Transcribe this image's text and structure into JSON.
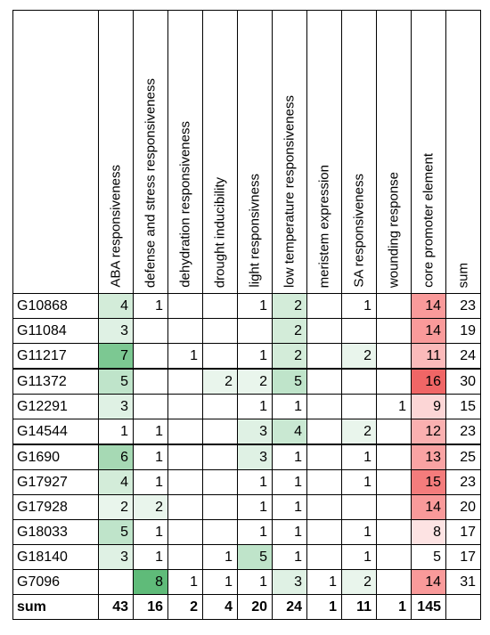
{
  "table": {
    "columns": [
      "ABA responsiveness",
      "defense and stress responsiveness",
      "dehydration responsiveness",
      "drought inducibility",
      "light responsivness",
      "low temperature responsiveness",
      "meristem expression",
      "SA responsiveness",
      "wounding response",
      "core promoter element",
      "sum"
    ],
    "rows": [
      {
        "name": "G10868",
        "cells": [
          "4",
          "1",
          "",
          "",
          "1",
          "2",
          "",
          "1",
          "",
          "14",
          "23"
        ],
        "colors": [
          "#d3ecd9",
          "#ffffff",
          "#ffffff",
          "#ffffff",
          "#ffffff",
          "#d3ecd9",
          "#ffffff",
          "#ffffff",
          "#ffffff",
          "#f99a9a",
          "#ffffff"
        ]
      },
      {
        "name": "G11084",
        "cells": [
          "3",
          "",
          "",
          "",
          "",
          "2",
          "",
          "",
          "",
          "14",
          "19"
        ],
        "colors": [
          "#dff1e4",
          "#ffffff",
          "#ffffff",
          "#ffffff",
          "#ffffff",
          "#d3ecd9",
          "#ffffff",
          "#ffffff",
          "#ffffff",
          "#f99a9a",
          "#ffffff"
        ]
      },
      {
        "name": "G11217",
        "cells": [
          "7",
          "",
          "1",
          "",
          "1",
          "2",
          "",
          "2",
          "",
          "11",
          "24"
        ],
        "colors": [
          "#7cc892",
          "#ffffff",
          "#ffffff",
          "#ffffff",
          "#ffffff",
          "#d3ecd9",
          "#ffffff",
          "#e9f5ec",
          "#ffffff",
          "#fbbaba",
          "#ffffff"
        ]
      },
      {
        "name": "G11372",
        "cells": [
          "5",
          "",
          "",
          "2",
          "2",
          "5",
          "",
          "",
          "",
          "16",
          "30"
        ],
        "colors": [
          "#bfe4ca",
          "#ffffff",
          "#ffffff",
          "#e9f5ec",
          "#e9f5ec",
          "#bfe4ca",
          "#ffffff",
          "#ffffff",
          "#ffffff",
          "#f06666",
          "#ffffff"
        ]
      },
      {
        "name": "G12291",
        "cells": [
          "3",
          "",
          "",
          "",
          "1",
          "1",
          "",
          "",
          "1",
          "9",
          "15"
        ],
        "colors": [
          "#dff1e4",
          "#ffffff",
          "#ffffff",
          "#ffffff",
          "#ffffff",
          "#ffffff",
          "#ffffff",
          "#ffffff",
          "#ffffff",
          "#fcd6d6",
          "#ffffff"
        ]
      },
      {
        "name": "G14544",
        "cells": [
          "1",
          "1",
          "",
          "",
          "3",
          "4",
          "",
          "2",
          "",
          "12",
          "23"
        ],
        "colors": [
          "#ffffff",
          "#ffffff",
          "#ffffff",
          "#ffffff",
          "#dff1e4",
          "#c9e8d2",
          "#ffffff",
          "#e9f5ec",
          "#ffffff",
          "#fab0b0",
          "#ffffff"
        ]
      },
      {
        "name": "G1690",
        "cells": [
          "6",
          "1",
          "",
          "",
          "3",
          "1",
          "",
          "1",
          "",
          "13",
          "25"
        ],
        "colors": [
          "#a6d9b4",
          "#ffffff",
          "#ffffff",
          "#ffffff",
          "#dff1e4",
          "#ffffff",
          "#ffffff",
          "#ffffff",
          "#ffffff",
          "#f9a3a3",
          "#ffffff"
        ]
      },
      {
        "name": "G17927",
        "cells": [
          "4",
          "1",
          "",
          "",
          "1",
          "1",
          "",
          "1",
          "",
          "15",
          "23"
        ],
        "colors": [
          "#d3ecd9",
          "#ffffff",
          "#ffffff",
          "#ffffff",
          "#ffffff",
          "#ffffff",
          "#ffffff",
          "#ffffff",
          "#ffffff",
          "#f47c7c",
          "#ffffff"
        ]
      },
      {
        "name": "G17928",
        "cells": [
          "2",
          "2",
          "",
          "",
          "1",
          "1",
          "",
          "",
          "",
          "14",
          "20"
        ],
        "colors": [
          "#e9f5ec",
          "#e9f5ec",
          "#ffffff",
          "#ffffff",
          "#ffffff",
          "#ffffff",
          "#ffffff",
          "#ffffff",
          "#ffffff",
          "#f99a9a",
          "#ffffff"
        ]
      },
      {
        "name": "G18033",
        "cells": [
          "5",
          "1",
          "",
          "",
          "1",
          "1",
          "",
          "1",
          "",
          "8",
          "17"
        ],
        "colors": [
          "#bfe4ca",
          "#ffffff",
          "#ffffff",
          "#ffffff",
          "#ffffff",
          "#ffffff",
          "#ffffff",
          "#ffffff",
          "#ffffff",
          "#fde3e3",
          "#ffffff"
        ]
      },
      {
        "name": "G18140",
        "cells": [
          "3",
          "1",
          "",
          "1",
          "5",
          "1",
          "",
          "1",
          "",
          "5",
          "17"
        ],
        "colors": [
          "#dff1e4",
          "#ffffff",
          "#ffffff",
          "#ffffff",
          "#bfe4ca",
          "#ffffff",
          "#ffffff",
          "#ffffff",
          "#ffffff",
          "#ffffff",
          "#ffffff"
        ]
      },
      {
        "name": "G7096",
        "cells": [
          "",
          "8",
          "1",
          "1",
          "1",
          "3",
          "1",
          "2",
          "",
          "14",
          "31"
        ],
        "colors": [
          "#ffffff",
          "#5fbb79",
          "#ffffff",
          "#ffffff",
          "#ffffff",
          "#dff1e4",
          "#ffffff",
          "#e9f5ec",
          "#ffffff",
          "#f99a9a",
          "#ffffff"
        ]
      }
    ],
    "sum_row": {
      "name": "sum",
      "cells": [
        "43",
        "16",
        "2",
        "4",
        "20",
        "24",
        "1",
        "11",
        "1",
        "145",
        ""
      ]
    }
  }
}
